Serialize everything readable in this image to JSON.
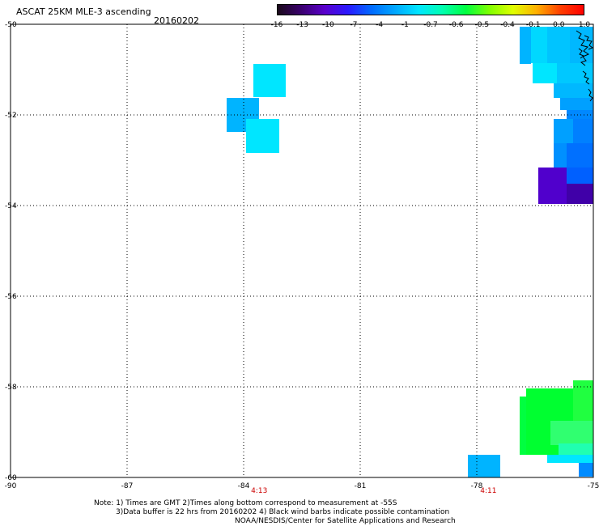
{
  "header": {
    "title": "ASCAT 25KM MLE-3 ascending",
    "date": "20160202"
  },
  "colorbar": {
    "labels": [
      "-16",
      "-13",
      "-10",
      "-7",
      "-4",
      "-1",
      "-0.7",
      "-0.6",
      "-0.5",
      "-0.4",
      "-0.1",
      "0.0",
      "1.0"
    ],
    "colors": [
      "#1a0a1a",
      "#3a006e",
      "#5a00cc",
      "#2a1aff",
      "#006cff",
      "#00a8ff",
      "#00e6ff",
      "#00ffb0",
      "#00ff40",
      "#80ff00",
      "#e0ff00",
      "#ffb000",
      "#ff4000",
      "#ff0000"
    ]
  },
  "axes": {
    "lon_labels": [
      "-90",
      "-87",
      "-84",
      "-81",
      "-78",
      "-75"
    ],
    "lat_labels": [
      "-50",
      "-52",
      "-54",
      "-56",
      "-58",
      "-60"
    ],
    "lon_range": [
      -90,
      -75
    ],
    "lat_range": [
      -60,
      -50
    ]
  },
  "time_labels": [
    {
      "text": "4:13",
      "lon": -83.6
    },
    {
      "text": "4:11",
      "lon": -77.7
    }
  ],
  "notes": {
    "line1": "Note: 1) Times are GMT 2)Times along bottom correspond to measurement at -55S",
    "line2": "3)Data buffer is 22 hrs from 20160202 4) Black wind barbs indicate possible contamination",
    "line3": "NOAA/NESDIS/Center for Satellite Applications and Research"
  },
  "colors": {
    "time_label": "#cc0000",
    "grid": "#000000"
  }
}
